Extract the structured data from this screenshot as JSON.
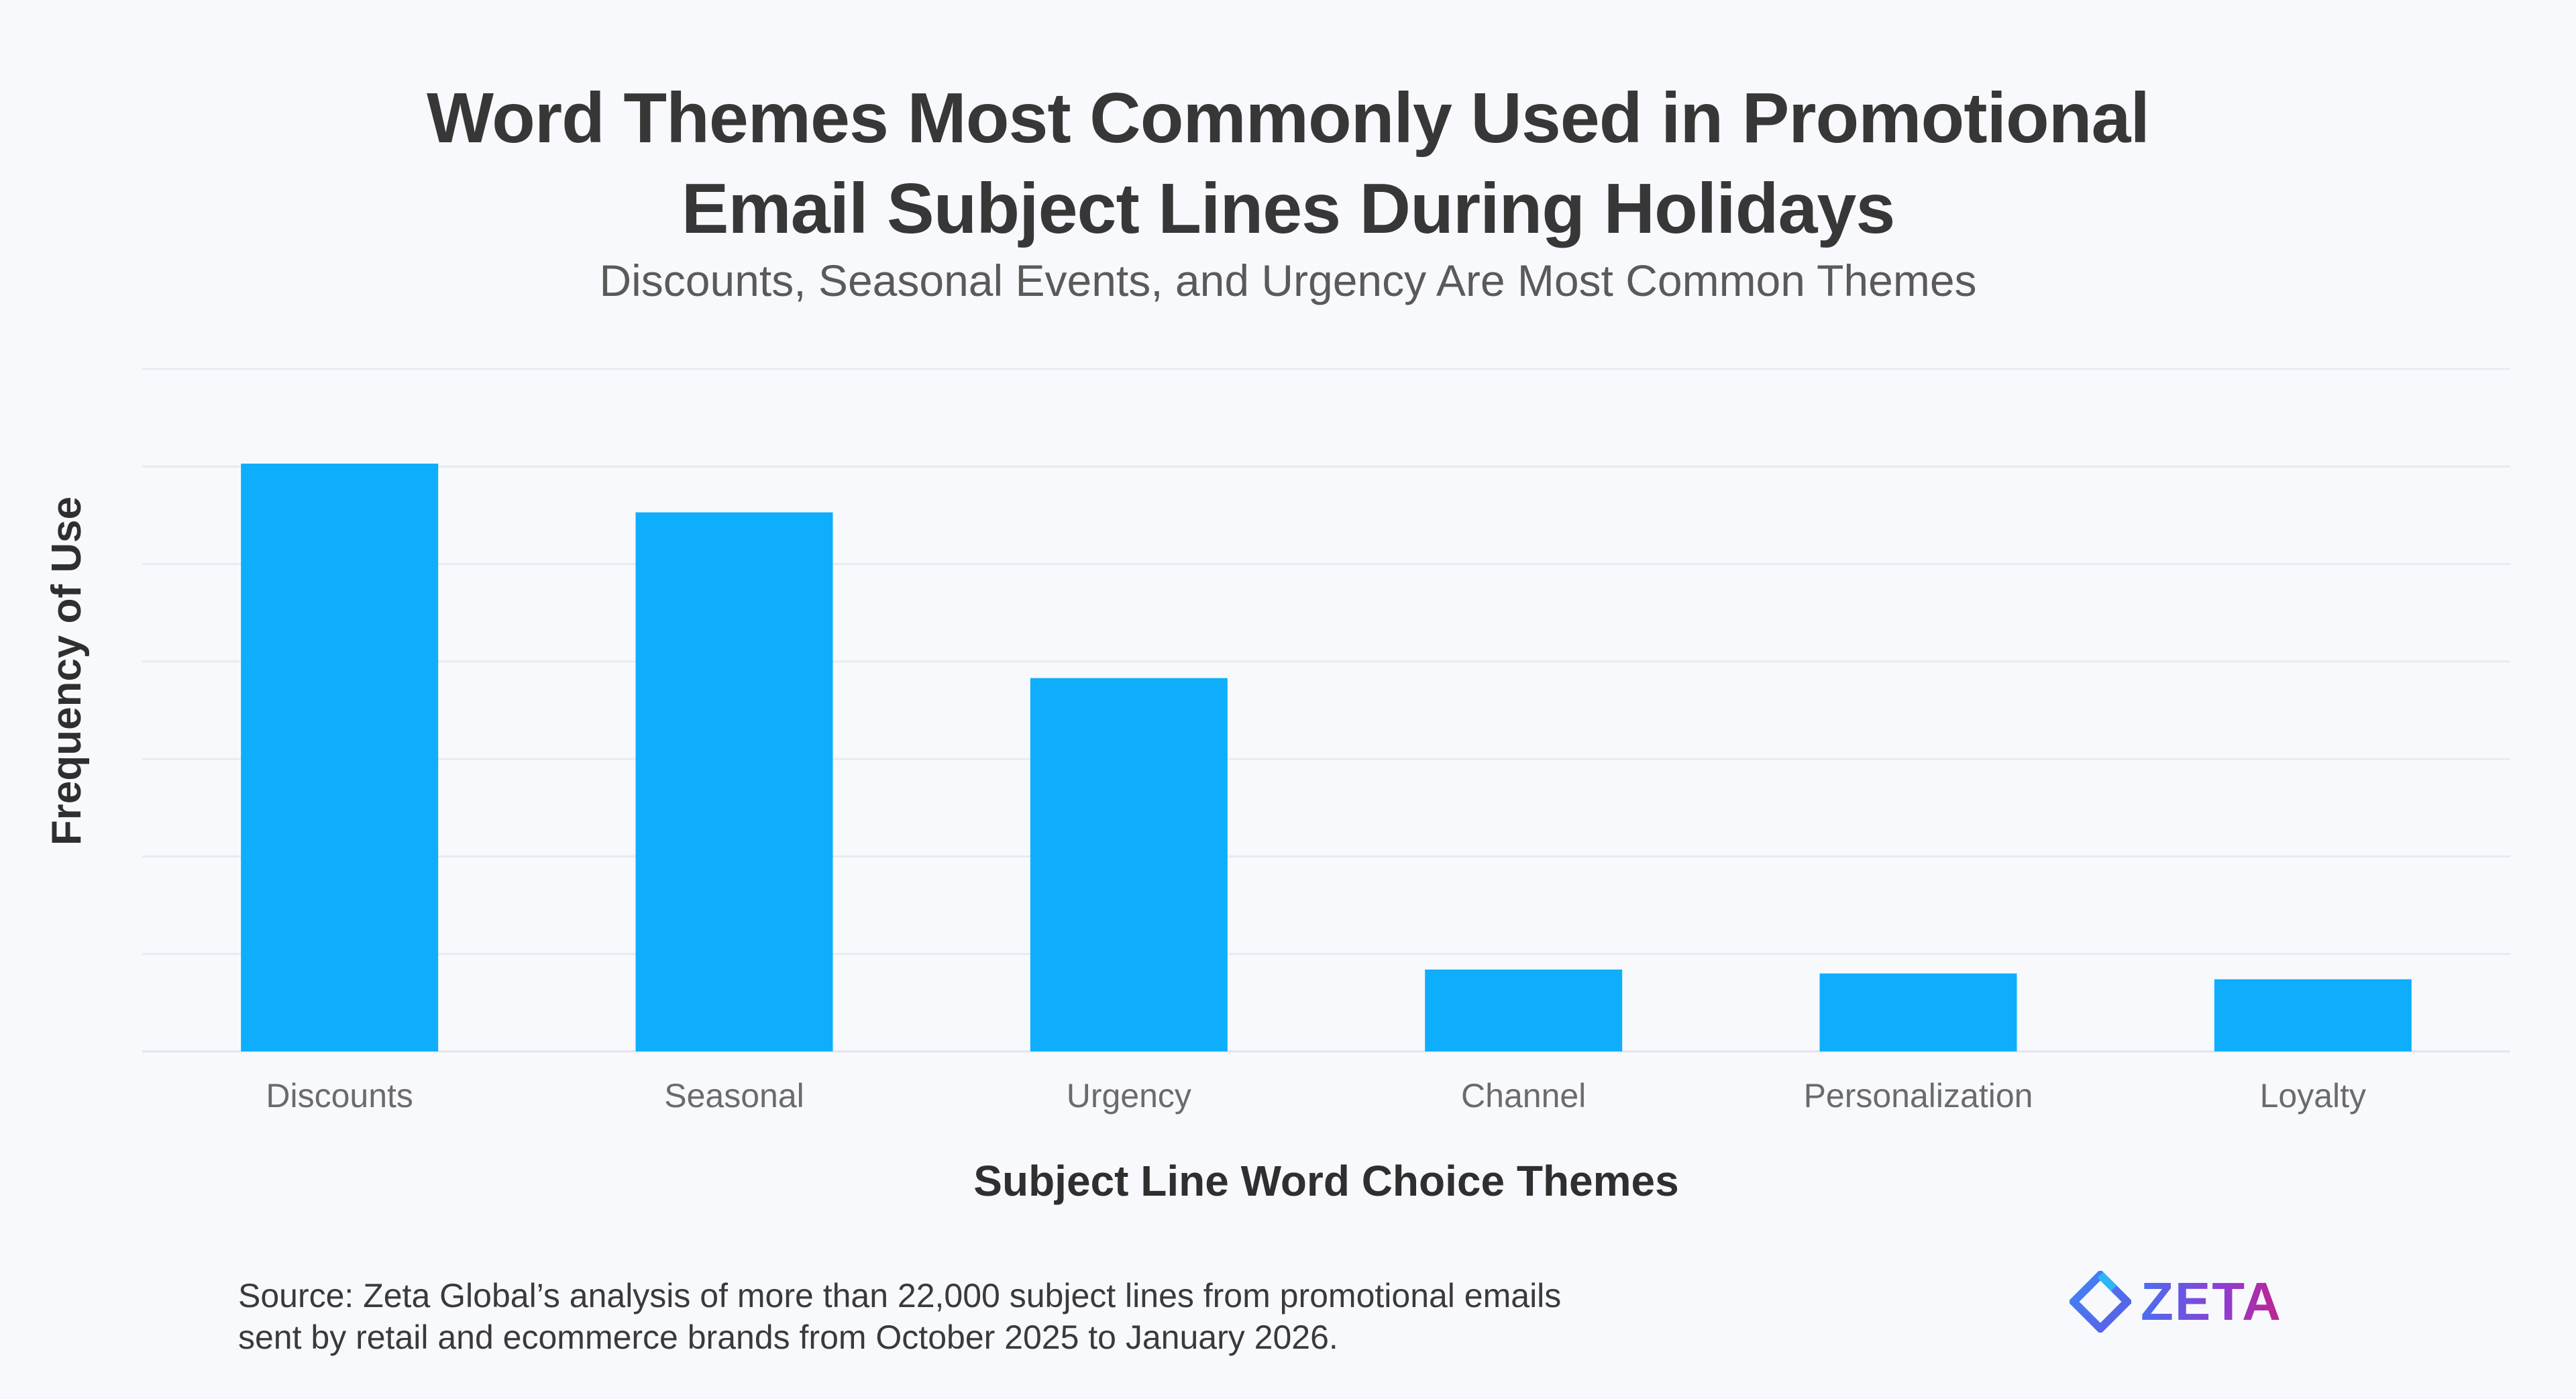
{
  "chart_data": {
    "type": "bar",
    "title_lines": [
      "Word Themes Most Commonly Used in Promotional",
      "Email Subject Lines During Holidays"
    ],
    "subtitle": "Discounts, Seasonal Events, and Urgency Are Most Common Themes",
    "xlabel": "Subject Line Word Choice Themes",
    "ylabel": "Frequency of Use",
    "categories": [
      "Discounts",
      "Seasonal",
      "Urgency",
      "Channel",
      "Personalization",
      "Loyalty"
    ],
    "values": [
      6.03,
      5.53,
      3.83,
      0.84,
      0.8,
      0.74
    ],
    "ylim": [
      0,
      7
    ],
    "grid": true,
    "bar_color": "#0eaefc"
  },
  "source": {
    "lines": [
      "Source: Zeta Global’s analysis of more than 22,000 subject lines from promotional emails",
      "sent by retail and ecommerce brands from October 2025 to January 2026."
    ]
  },
  "logo": {
    "text": "ZETA",
    "icon": "zeta-diamond-icon"
  }
}
